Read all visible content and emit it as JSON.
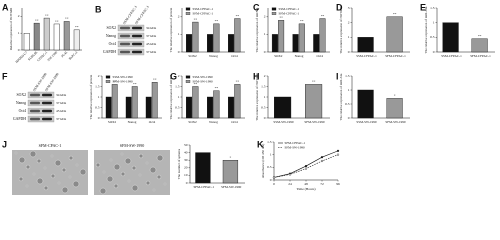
{
  "chart_data": [
    {
      "panel": "A",
      "type": "bar",
      "ylabel": "Relative expression of HOTAIR",
      "rotate_categories": true,
      "categories": [
        "HPDE6-C7",
        "SU86.86",
        "CFPAC-1",
        "SW-1990",
        "PL45",
        "BxPC-3"
      ],
      "series": [
        {
          "colors": [
            "#ffffff",
            "#888888",
            "#cccccc",
            "#ffffff",
            "#999999",
            "#eeeeee"
          ],
          "values": [
            1,
            1.6,
            1.9,
            1.55,
            1.7,
            1.2
          ],
          "sig": [
            null,
            "**",
            "**",
            "**",
            "**",
            "**"
          ]
        }
      ],
      "ylim": [
        0,
        2.5
      ],
      "yticks": [
        0,
        1,
        2
      ]
    },
    {
      "type": "bar",
      "ylabel": "The relative expression of protein",
      "legend": "upper left",
      "categories": [
        "SOX2",
        "Nanog",
        "Oct4"
      ],
      "series": [
        {
          "name": "SSM-CFPAC-1",
          "color": "#111111",
          "values": [
            1,
            1,
            1
          ]
        },
        {
          "name": "SFM-CFPAC-1",
          "color": "#999999",
          "values": [
            1.7,
            1.6,
            1.9
          ],
          "sig": [
            "**",
            "**",
            "**"
          ]
        }
      ],
      "ylim": [
        0,
        2.5
      ],
      "yticks": [
        0,
        1,
        2
      ]
    },
    {
      "panel": "C",
      "type": "bar",
      "ylabel": "The relative expression of mRNA",
      "legend": "upper left",
      "categories": [
        "SOX2",
        "Nanog",
        "Oct4"
      ],
      "series": [
        {
          "name": "SSM-CFPAC-1",
          "color": "#111111",
          "values": [
            1,
            1,
            1
          ]
        },
        {
          "name": "SFM-CFPAC-1",
          "color": "#999999",
          "values": [
            1.8,
            1.6,
            1.9
          ],
          "sig": [
            "**",
            "**",
            "**"
          ]
        }
      ],
      "ylim": [
        0,
        2.5
      ],
      "yticks": [
        0,
        1,
        2
      ]
    },
    {
      "panel": "D",
      "type": "bar",
      "ylabel": "The relative expression of HOTAIR",
      "categories": [
        "SSM-CFPAC-1",
        "SFM-CFPAC-1"
      ],
      "series": [
        {
          "colors": [
            "#111111",
            "#999999"
          ],
          "values": [
            1,
            2.4
          ],
          "sig": [
            null,
            "**"
          ]
        }
      ],
      "ylim": [
        0,
        3
      ],
      "yticks": [
        0,
        1,
        2,
        3
      ]
    },
    {
      "panel": "E",
      "type": "bar",
      "ylabel": "The relative expression of miR-34a",
      "categories": [
        "SSM-CFPAC-1",
        "SFM-CFPAC-1"
      ],
      "series": [
        {
          "colors": [
            "#111111",
            "#999999"
          ],
          "values": [
            1,
            0.45
          ],
          "sig": [
            null,
            "**"
          ]
        }
      ],
      "ylim": [
        0,
        1.5
      ],
      "yticks": [
        0,
        0.5,
        1,
        1.5
      ]
    },
    {
      "type": "bar",
      "ylabel": "The relative expression of protein",
      "legend": "upper left",
      "categories": [
        "SOX2",
        "Nanog",
        "Oct4"
      ],
      "series": [
        {
          "name": "SSM-SW-1990",
          "color": "#111111",
          "values": [
            1,
            1,
            1
          ]
        },
        {
          "name": "SFM-SW-1990",
          "color": "#999999",
          "values": [
            1.6,
            1.5,
            1.7
          ],
          "sig": [
            "**",
            "**",
            "**"
          ]
        }
      ],
      "ylim": [
        0,
        2
      ],
      "yticks": [
        0,
        0.5,
        1,
        1.5,
        2
      ]
    },
    {
      "panel": "G",
      "type": "bar",
      "ylabel": "The relative expression of mRNA",
      "legend": "upper left",
      "categories": [
        "SOX2",
        "Nanog",
        "Oct4"
      ],
      "series": [
        {
          "name": "SSM-SW-1990",
          "color": "#111111",
          "values": [
            1,
            1,
            1
          ]
        },
        {
          "name": "SFM-SW-1990",
          "color": "#999999",
          "values": [
            1.5,
            1.3,
            1.6
          ],
          "sig": [
            "**",
            "**",
            "**"
          ]
        }
      ],
      "ylim": [
        0,
        2
      ],
      "yticks": [
        0,
        0.5,
        1,
        1.5,
        2
      ]
    },
    {
      "panel": "H",
      "type": "bar",
      "ylabel": "The relative expression of HOTAIR",
      "categories": [
        "SSM-SW-1990",
        "SFM-SW-1990"
      ],
      "series": [
        {
          "colors": [
            "#111111",
            "#999999"
          ],
          "values": [
            1,
            1.6
          ],
          "sig": [
            null,
            "**"
          ]
        }
      ],
      "ylim": [
        0,
        2
      ],
      "yticks": [
        0,
        0.5,
        1,
        1.5,
        2
      ]
    },
    {
      "panel": "I",
      "type": "bar",
      "ylabel": "The relative expression of miR-34a",
      "categories": [
        "SSM-SW-1990",
        "SFM-SW-1990"
      ],
      "series": [
        {
          "colors": [
            "#111111",
            "#999999"
          ],
          "values": [
            1,
            0.7
          ],
          "sig": [
            null,
            "*"
          ]
        }
      ],
      "ylim": [
        0,
        1.5
      ],
      "yticks": [
        0,
        0.5,
        1,
        1.5
      ]
    },
    {
      "type": "bar",
      "ylabel": "The number of spheres",
      "categories": [
        "SFM-CFPAC-1",
        "SFM-SW-1990"
      ],
      "series": [
        {
          "colors": [
            "#111111",
            "#999999"
          ],
          "values": [
            40,
            30
          ],
          "sig": [
            null,
            "*"
          ]
        }
      ],
      "ylim": [
        0,
        50
      ],
      "yticks": [
        0,
        10,
        20,
        30,
        40,
        50
      ]
    },
    {
      "panel": "K",
      "type": "line",
      "ylabel": "Absorbance (OD 450 nm)",
      "xlabel": "Time (Hours)",
      "legend": "upper left",
      "x": [
        0,
        24,
        48,
        72,
        96
      ],
      "series": [
        {
          "name": "SFM-CFPAC-1",
          "color": "#111111",
          "dash": false,
          "values": [
            0.1,
            0.25,
            0.55,
            0.9,
            1.15
          ]
        },
        {
          "name": "SFM-SW-1990",
          "color": "#111111",
          "dash": true,
          "values": [
            0.1,
            0.22,
            0.45,
            0.75,
            1.0
          ]
        }
      ],
      "xlim": [
        0,
        96
      ],
      "xticks": [
        0,
        24,
        48,
        72,
        96
      ],
      "ylim": [
        0,
        1.5
      ],
      "yticks": [
        0,
        0.5,
        1,
        1.5
      ]
    }
  ],
  "blots": [
    {
      "panel": "B",
      "lanes": [
        "SSM-CFPAC-1",
        "SFM-CFPAC-1"
      ],
      "rows": [
        {
          "protein": "SOX2",
          "size": "34 kDa"
        },
        {
          "protein": "Nanog",
          "size": "37 kDa"
        },
        {
          "protein": "Oct4",
          "size": "45 kDa"
        },
        {
          "protein": "GAPDH",
          "size": "37 kDa"
        }
      ]
    },
    {
      "panel": "F",
      "lanes": [
        "SSM-SW-1990",
        "SFM-SW-1990"
      ],
      "rows": [
        {
          "protein": "SOX2",
          "size": "34 kDa"
        },
        {
          "protein": "Nanog",
          "size": "37 kDa"
        },
        {
          "protein": "Oct4",
          "size": "45 kDa"
        },
        {
          "protein": "GAPDH",
          "size": "37 kDa"
        }
      ]
    }
  ],
  "micrographs": {
    "panel": "J",
    "labels": [
      "SFM-CPAC-1",
      "SFM-SW-1990"
    ]
  }
}
